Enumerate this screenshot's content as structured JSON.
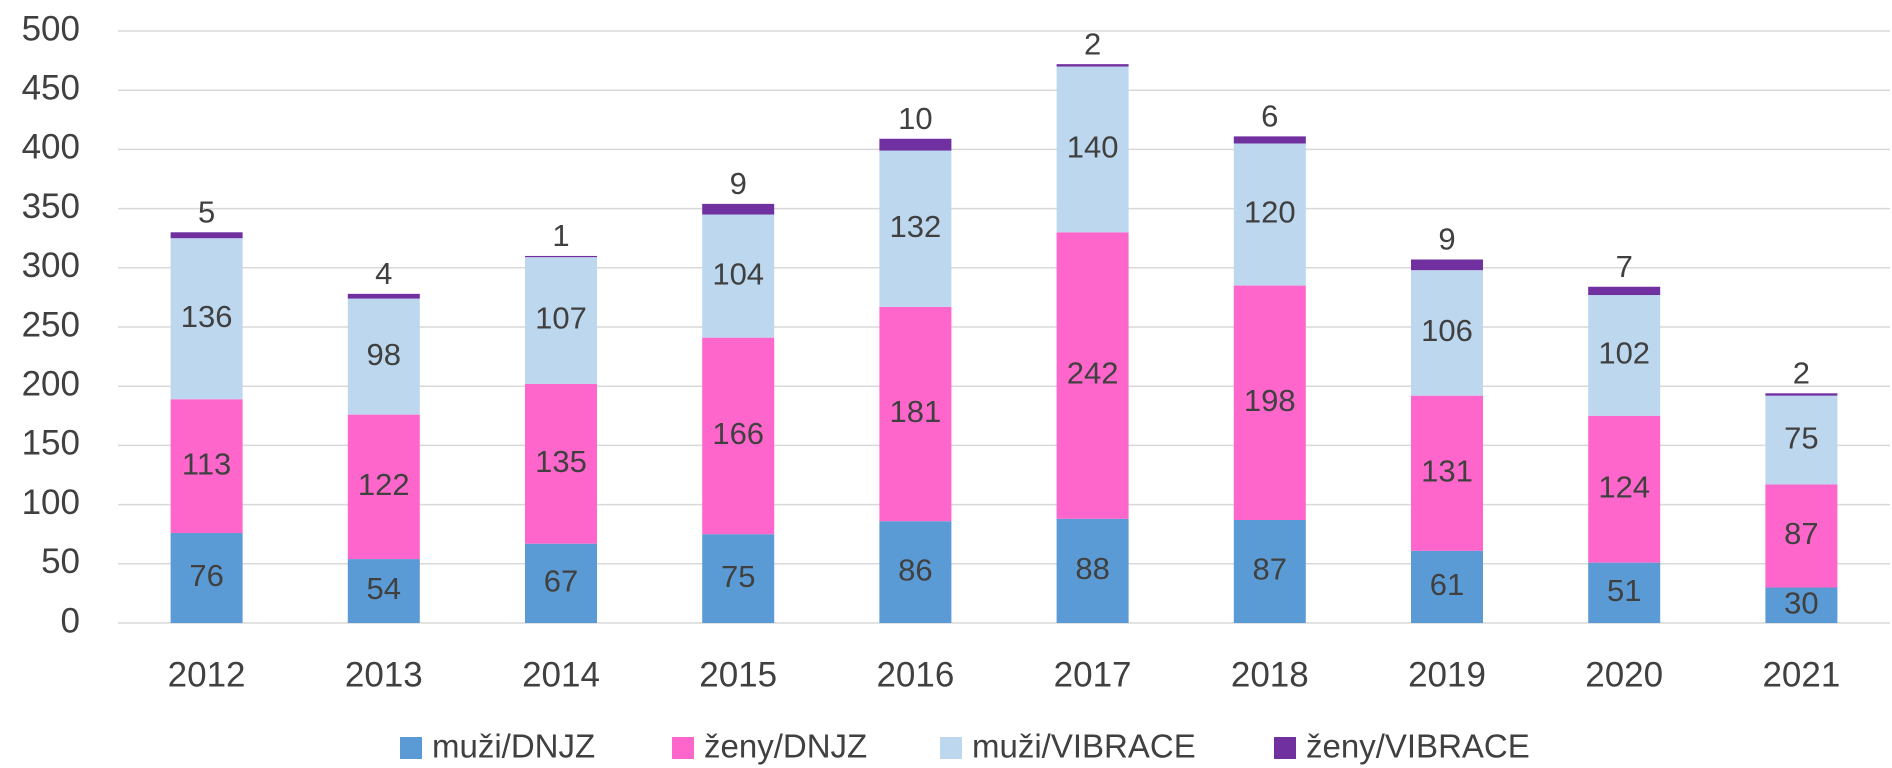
{
  "chart_data": {
    "type": "stacked_bar",
    "categories": [
      "2012",
      "2013",
      "2014",
      "2015",
      "2016",
      "2017",
      "2018",
      "2019",
      "2020",
      "2021"
    ],
    "series": [
      {
        "name": "muži/DNJZ",
        "color": "#5b9bd5",
        "values": [
          76,
          54,
          67,
          75,
          86,
          88,
          87,
          61,
          51,
          30
        ]
      },
      {
        "name": "ženy/DNJZ",
        "color": "#ff66cc",
        "values": [
          113,
          122,
          135,
          166,
          181,
          242,
          198,
          131,
          124,
          87
        ]
      },
      {
        "name": "muži/VIBRACE",
        "color": "#bdd7ee",
        "values": [
          136,
          98,
          107,
          104,
          132,
          140,
          120,
          106,
          102,
          75
        ]
      },
      {
        "name": "ženy/VIBRACE",
        "color": "#7030a0",
        "values": [
          5,
          4,
          1,
          9,
          10,
          2,
          6,
          9,
          7,
          2
        ]
      }
    ],
    "ylim": [
      0,
      500
    ],
    "yticks": [
      0,
      50,
      100,
      150,
      200,
      250,
      300,
      350,
      400,
      450,
      500
    ],
    "grid": true,
    "legend": "bottom"
  }
}
